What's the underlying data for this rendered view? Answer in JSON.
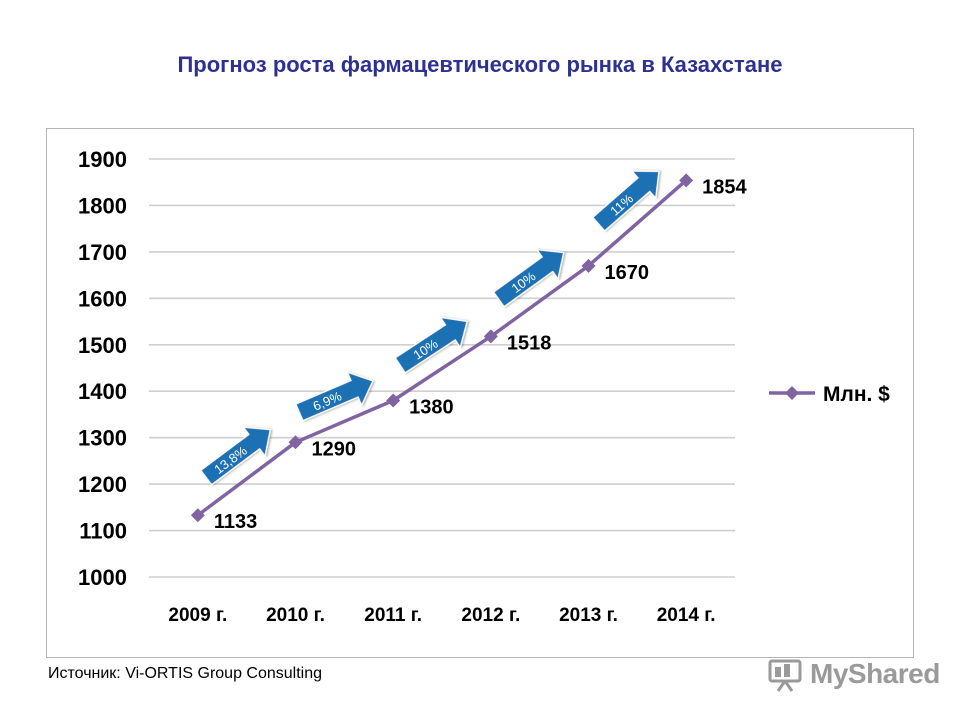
{
  "title": "Прогноз роста фармацевтического рынка в Казахстане",
  "source": "Источник: Vi-ORTIS Group Consulting",
  "watermark": {
    "text": "MyShared",
    "icon": "presentation-board-icon"
  },
  "colors": {
    "title": "#2e3192",
    "line": "#8064a2",
    "arrow": "#1f6fb4",
    "grid": "#cfcfcf"
  },
  "chart_data": {
    "type": "line",
    "categories": [
      "2009 г.",
      "2010 г.",
      "2011 г.",
      "2012 г.",
      "2013 г.",
      "2014 г."
    ],
    "series": [
      {
        "name": "Млн. $",
        "values": [
          1133,
          1290,
          1380,
          1518,
          1670,
          1854
        ]
      }
    ],
    "data_labels": [
      "1133",
      "1290",
      "1380",
      "1518",
      "1670",
      "1854"
    ],
    "growth_labels": [
      "13,8%",
      "6,9%",
      "10%",
      "10%",
      "11%"
    ],
    "ylim": [
      1000,
      1900
    ],
    "yticks": [
      1000,
      1100,
      1200,
      1300,
      1400,
      1500,
      1600,
      1700,
      1800,
      1900
    ],
    "grid": true,
    "legend_position": "right"
  }
}
